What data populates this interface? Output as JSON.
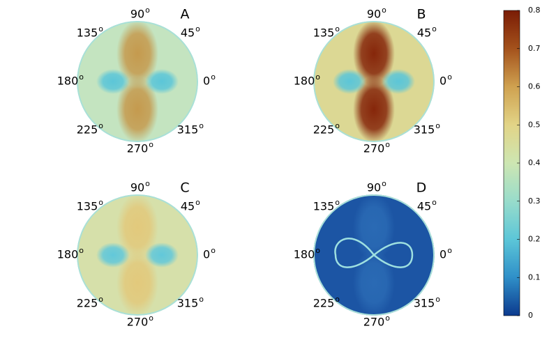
{
  "chart_data": [
    {
      "type": "polar-heatmap",
      "label": "A",
      "thetaticks": [
        0,
        45,
        90,
        135,
        180,
        225,
        270,
        315
      ],
      "degree_symbol": "o",
      "colors": {
        "background": "#c4e4c0",
        "lobes": "#c59a4e",
        "side": "#5cc6d8"
      }
    },
    {
      "type": "polar-heatmap",
      "label": "B",
      "thetaticks": [
        0,
        45,
        90,
        135,
        180,
        225,
        270,
        315
      ],
      "degree_symbol": "o",
      "colors": {
        "background": "#dcd894",
        "lobes": "#86260a",
        "side": "#5cc6d8"
      }
    },
    {
      "type": "polar-heatmap",
      "label": "C",
      "thetaticks": [
        0,
        45,
        90,
        135,
        180,
        225,
        270,
        315
      ],
      "degree_symbol": "o",
      "colors": {
        "background": "#d6e0aa",
        "lobes": "#e2c97c",
        "side": "#62c8da"
      }
    },
    {
      "type": "polar-heatmap",
      "label": "D",
      "thetaticks": [
        0,
        45,
        90,
        135,
        180,
        225,
        270,
        315
      ],
      "degree_symbol": "o",
      "colors": {
        "background": "#1c55a4",
        "lobes": "#2a6ab4",
        "side": "#9ee0e0"
      }
    },
    {
      "type": "colorbar",
      "clim": [
        0,
        0.8
      ],
      "ticks": [
        0,
        0.1,
        0.2,
        0.3,
        0.4,
        0.5,
        0.6,
        0.7,
        0.8
      ],
      "colorscale": [
        "#0c3a8e",
        "#2f8fc8",
        "#5cc6d8",
        "#98dccb",
        "#cde6b2",
        "#e2d487",
        "#cfa150",
        "#a4521c",
        "#7a1c05"
      ]
    }
  ]
}
